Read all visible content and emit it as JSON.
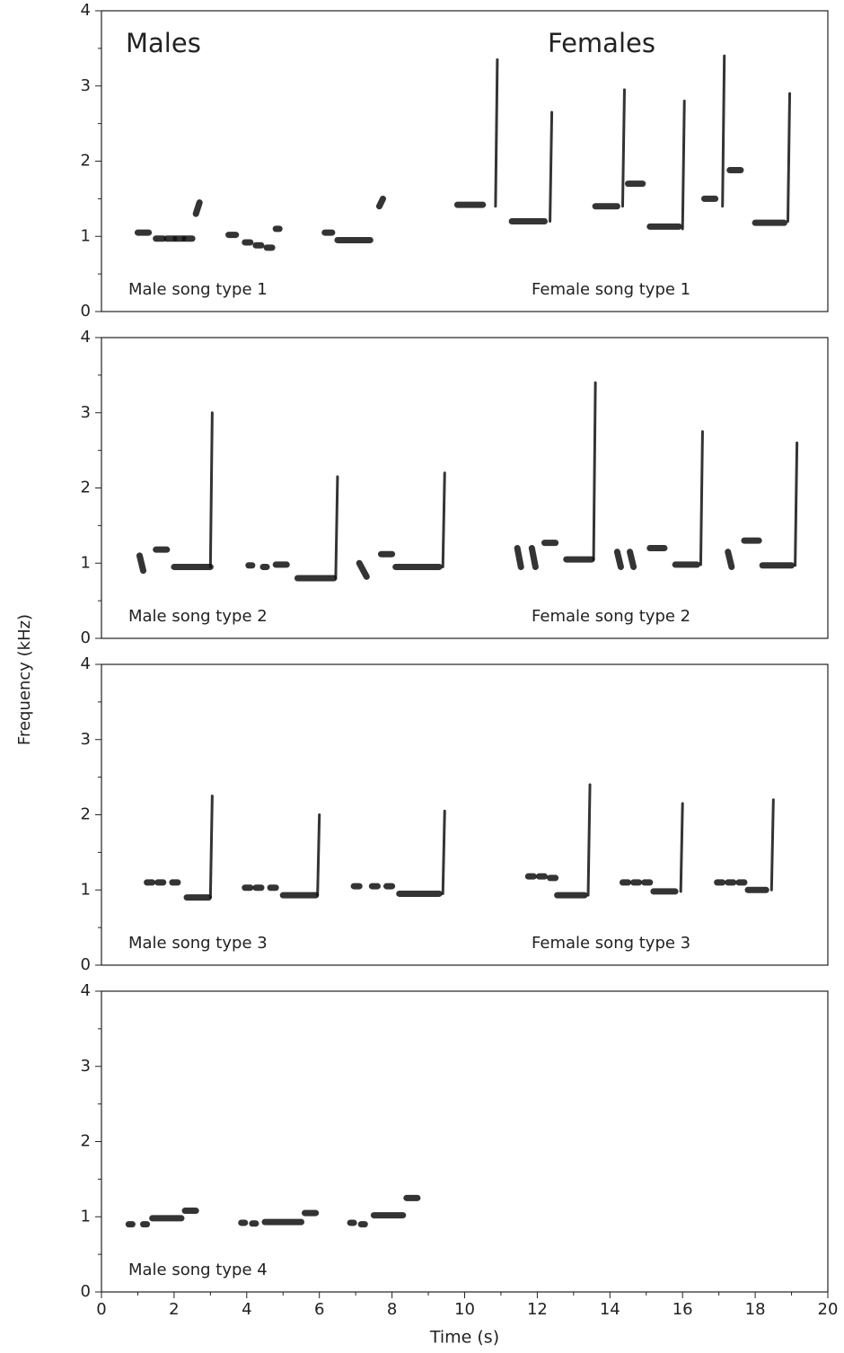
{
  "figure": {
    "ylabel": "Frequency (kHz)"
  },
  "chart_data": [
    {
      "type": "spectrogram",
      "group_labels": [
        "Males",
        "Females"
      ],
      "song_labels": [
        "Male song type 1",
        "Female song type 1"
      ],
      "xlim": [
        0,
        20
      ],
      "ylim": [
        0,
        4
      ],
      "yticks": [
        0,
        1,
        2,
        3,
        4
      ],
      "yminorticks": [
        0.5,
        1.5,
        2.5,
        3.5
      ],
      "notes": [
        {
          "t": [
            1.0,
            1.3
          ],
          "f": [
            1.05,
            1.05
          ]
        },
        {
          "t": [
            1.5,
            1.7
          ],
          "f": [
            0.97,
            0.97
          ]
        },
        {
          "t": [
            1.8,
            2.0
          ],
          "f": [
            0.97,
            0.97
          ]
        },
        {
          "t": [
            2.05,
            2.25
          ],
          "f": [
            0.97,
            0.97
          ]
        },
        {
          "t": [
            2.3,
            2.5
          ],
          "f": [
            0.97,
            0.97
          ]
        },
        {
          "t": [
            2.6,
            2.7
          ],
          "f": [
            1.3,
            1.45
          ]
        },
        {
          "t": [
            3.5,
            3.7
          ],
          "f": [
            1.02,
            1.02
          ]
        },
        {
          "t": [
            3.95,
            4.1
          ],
          "f": [
            0.92,
            0.92
          ]
        },
        {
          "t": [
            4.25,
            4.4
          ],
          "f": [
            0.88,
            0.88
          ]
        },
        {
          "t": [
            4.55,
            4.7
          ],
          "f": [
            0.85,
            0.85
          ]
        },
        {
          "t": [
            4.8,
            4.9
          ],
          "f": [
            1.1,
            1.1
          ]
        },
        {
          "t": [
            6.15,
            6.35
          ],
          "f": [
            1.05,
            1.05
          ]
        },
        {
          "t": [
            6.5,
            7.4
          ],
          "f": [
            0.95,
            0.95
          ]
        },
        {
          "t": [
            7.65,
            7.75
          ],
          "f": [
            1.4,
            1.5
          ]
        },
        {
          "t": [
            9.8,
            10.5
          ],
          "f": [
            1.42,
            1.42
          ]
        },
        {
          "t": [
            10.85,
            10.9
          ],
          "f": [
            1.4,
            3.35
          ]
        },
        {
          "t": [
            11.3,
            12.2
          ],
          "f": [
            1.2,
            1.2
          ]
        },
        {
          "t": [
            12.35,
            12.4
          ],
          "f": [
            1.2,
            2.65
          ]
        },
        {
          "t": [
            13.6,
            14.2
          ],
          "f": [
            1.4,
            1.4
          ]
        },
        {
          "t": [
            14.35,
            14.4
          ],
          "f": [
            1.4,
            2.95
          ]
        },
        {
          "t": [
            14.5,
            14.9
          ],
          "f": [
            1.7,
            1.7
          ]
        },
        {
          "t": [
            15.1,
            15.9
          ],
          "f": [
            1.13,
            1.13
          ]
        },
        {
          "t": [
            16.0,
            16.05
          ],
          "f": [
            1.1,
            2.8
          ]
        },
        {
          "t": [
            16.6,
            16.9
          ],
          "f": [
            1.5,
            1.5
          ]
        },
        {
          "t": [
            17.1,
            17.15
          ],
          "f": [
            1.4,
            3.4
          ]
        },
        {
          "t": [
            17.3,
            17.6
          ],
          "f": [
            1.88,
            1.88
          ]
        },
        {
          "t": [
            18.0,
            18.8
          ],
          "f": [
            1.18,
            1.18
          ]
        },
        {
          "t": [
            18.9,
            18.95
          ],
          "f": [
            1.2,
            2.9
          ]
        }
      ]
    },
    {
      "type": "spectrogram",
      "song_labels": [
        "Male song type 2",
        "Female song type 2"
      ],
      "xlim": [
        0,
        20
      ],
      "ylim": [
        0,
        4
      ],
      "yticks": [
        0,
        1,
        2,
        3,
        4
      ],
      "yminorticks": [
        0.5,
        1.5,
        2.5,
        3.5
      ],
      "notes": [
        {
          "t": [
            1.05,
            1.15
          ],
          "f": [
            1.1,
            0.9
          ]
        },
        {
          "t": [
            1.5,
            1.8
          ],
          "f": [
            1.18,
            1.18
          ]
        },
        {
          "t": [
            2.0,
            3.0
          ],
          "f": [
            0.95,
            0.95
          ]
        },
        {
          "t": [
            3.0,
            3.05
          ],
          "f": [
            0.95,
            3.0
          ]
        },
        {
          "t": [
            4.05,
            4.15
          ],
          "f": [
            0.97,
            0.97
          ]
        },
        {
          "t": [
            4.45,
            4.55
          ],
          "f": [
            0.95,
            0.95
          ]
        },
        {
          "t": [
            4.8,
            5.1
          ],
          "f": [
            0.98,
            0.98
          ]
        },
        {
          "t": [
            5.4,
            6.4
          ],
          "f": [
            0.8,
            0.8
          ]
        },
        {
          "t": [
            6.45,
            6.5
          ],
          "f": [
            0.8,
            2.15
          ]
        },
        {
          "t": [
            7.1,
            7.3
          ],
          "f": [
            1.0,
            0.82
          ]
        },
        {
          "t": [
            7.7,
            8.0
          ],
          "f": [
            1.12,
            1.12
          ]
        },
        {
          "t": [
            8.1,
            9.3
          ],
          "f": [
            0.95,
            0.95
          ]
        },
        {
          "t": [
            9.4,
            9.45
          ],
          "f": [
            0.95,
            2.2
          ]
        },
        {
          "t": [
            11.45,
            11.55
          ],
          "f": [
            1.2,
            0.95
          ]
        },
        {
          "t": [
            11.85,
            11.95
          ],
          "f": [
            1.2,
            0.95
          ]
        },
        {
          "t": [
            12.2,
            12.5
          ],
          "f": [
            1.27,
            1.27
          ]
        },
        {
          "t": [
            12.8,
            13.5
          ],
          "f": [
            1.05,
            1.05
          ]
        },
        {
          "t": [
            13.55,
            13.6
          ],
          "f": [
            1.05,
            3.4
          ]
        },
        {
          "t": [
            14.2,
            14.3
          ],
          "f": [
            1.15,
            0.95
          ]
        },
        {
          "t": [
            14.55,
            14.65
          ],
          "f": [
            1.15,
            0.95
          ]
        },
        {
          "t": [
            15.1,
            15.5
          ],
          "f": [
            1.2,
            1.2
          ]
        },
        {
          "t": [
            15.8,
            16.4
          ],
          "f": [
            0.98,
            0.98
          ]
        },
        {
          "t": [
            16.5,
            16.55
          ],
          "f": [
            0.98,
            2.75
          ]
        },
        {
          "t": [
            17.25,
            17.35
          ],
          "f": [
            1.15,
            0.95
          ]
        },
        {
          "t": [
            17.7,
            18.1
          ],
          "f": [
            1.3,
            1.3
          ]
        },
        {
          "t": [
            18.2,
            19.0
          ],
          "f": [
            0.97,
            0.97
          ]
        },
        {
          "t": [
            19.1,
            19.15
          ],
          "f": [
            0.97,
            2.6
          ]
        }
      ]
    },
    {
      "type": "spectrogram",
      "song_labels": [
        "Male song type 3",
        "Female song type 3"
      ],
      "xlim": [
        0,
        20
      ],
      "ylim": [
        0,
        4
      ],
      "yticks": [
        0,
        1,
        2,
        3,
        4
      ],
      "yminorticks": [
        0.5,
        1.5,
        2.5,
        3.5
      ],
      "notes": [
        {
          "t": [
            1.25,
            1.4
          ],
          "f": [
            1.1,
            1.1
          ]
        },
        {
          "t": [
            1.55,
            1.7
          ],
          "f": [
            1.1,
            1.1
          ]
        },
        {
          "t": [
            1.95,
            2.1
          ],
          "f": [
            1.1,
            1.1
          ]
        },
        {
          "t": [
            2.35,
            2.95
          ],
          "f": [
            0.9,
            0.9
          ]
        },
        {
          "t": [
            3.0,
            3.05
          ],
          "f": [
            0.9,
            2.25
          ]
        },
        {
          "t": [
            3.95,
            4.1
          ],
          "f": [
            1.03,
            1.03
          ]
        },
        {
          "t": [
            4.25,
            4.4
          ],
          "f": [
            1.03,
            1.03
          ]
        },
        {
          "t": [
            4.65,
            4.8
          ],
          "f": [
            1.03,
            1.03
          ]
        },
        {
          "t": [
            5.0,
            5.9
          ],
          "f": [
            0.93,
            0.93
          ]
        },
        {
          "t": [
            5.95,
            6.0
          ],
          "f": [
            0.93,
            2.0
          ]
        },
        {
          "t": [
            6.95,
            7.1
          ],
          "f": [
            1.05,
            1.05
          ]
        },
        {
          "t": [
            7.45,
            7.6
          ],
          "f": [
            1.05,
            1.05
          ]
        },
        {
          "t": [
            7.85,
            8.0
          ],
          "f": [
            1.05,
            1.05
          ]
        },
        {
          "t": [
            8.2,
            9.3
          ],
          "f": [
            0.95,
            0.95
          ]
        },
        {
          "t": [
            9.4,
            9.45
          ],
          "f": [
            0.95,
            2.05
          ]
        },
        {
          "t": [
            11.75,
            11.9
          ],
          "f": [
            1.18,
            1.18
          ]
        },
        {
          "t": [
            12.05,
            12.2
          ],
          "f": [
            1.18,
            1.18
          ]
        },
        {
          "t": [
            12.35,
            12.5
          ],
          "f": [
            1.16,
            1.16
          ]
        },
        {
          "t": [
            12.55,
            13.3
          ],
          "f": [
            0.93,
            0.93
          ]
        },
        {
          "t": [
            13.4,
            13.45
          ],
          "f": [
            0.93,
            2.4
          ]
        },
        {
          "t": [
            14.35,
            14.5
          ],
          "f": [
            1.1,
            1.1
          ]
        },
        {
          "t": [
            14.65,
            14.8
          ],
          "f": [
            1.1,
            1.1
          ]
        },
        {
          "t": [
            14.95,
            15.1
          ],
          "f": [
            1.1,
            1.1
          ]
        },
        {
          "t": [
            15.2,
            15.8
          ],
          "f": [
            0.98,
            0.98
          ]
        },
        {
          "t": [
            15.95,
            16.0
          ],
          "f": [
            0.98,
            2.15
          ]
        },
        {
          "t": [
            16.95,
            17.1
          ],
          "f": [
            1.1,
            1.1
          ]
        },
        {
          "t": [
            17.25,
            17.4
          ],
          "f": [
            1.1,
            1.1
          ]
        },
        {
          "t": [
            17.55,
            17.7
          ],
          "f": [
            1.1,
            1.1
          ]
        },
        {
          "t": [
            17.8,
            18.3
          ],
          "f": [
            1.0,
            1.0
          ]
        },
        {
          "t": [
            18.45,
            18.5
          ],
          "f": [
            1.0,
            2.2
          ]
        }
      ]
    },
    {
      "type": "spectrogram",
      "song_labels": [
        "Male song type 4"
      ],
      "xlabel": "Time (s)",
      "xlim": [
        0,
        20
      ],
      "ylim": [
        0,
        4
      ],
      "yticks": [
        0,
        1,
        2,
        3,
        4
      ],
      "yminorticks": [
        0.5,
        1.5,
        2.5,
        3.5
      ],
      "xticks": [
        0,
        2,
        4,
        6,
        8,
        10,
        12,
        14,
        16,
        18,
        20
      ],
      "xminorticks": [
        1,
        3,
        5,
        7,
        9,
        11,
        13,
        15,
        17,
        19
      ],
      "notes": [
        {
          "t": [
            0.75,
            0.85
          ],
          "f": [
            0.9,
            0.9
          ]
        },
        {
          "t": [
            1.15,
            1.25
          ],
          "f": [
            0.9,
            0.9
          ]
        },
        {
          "t": [
            1.4,
            2.2
          ],
          "f": [
            0.98,
            0.98
          ]
        },
        {
          "t": [
            2.3,
            2.6
          ],
          "f": [
            1.08,
            1.08
          ]
        },
        {
          "t": [
            3.85,
            3.95
          ],
          "f": [
            0.92,
            0.92
          ]
        },
        {
          "t": [
            4.15,
            4.25
          ],
          "f": [
            0.91,
            0.91
          ]
        },
        {
          "t": [
            4.5,
            5.5
          ],
          "f": [
            0.93,
            0.93
          ]
        },
        {
          "t": [
            5.6,
            5.9
          ],
          "f": [
            1.05,
            1.05
          ]
        },
        {
          "t": [
            6.85,
            6.95
          ],
          "f": [
            0.92,
            0.92
          ]
        },
        {
          "t": [
            7.15,
            7.25
          ],
          "f": [
            0.9,
            0.9
          ]
        },
        {
          "t": [
            7.5,
            8.3
          ],
          "f": [
            1.02,
            1.02
          ]
        },
        {
          "t": [
            8.4,
            8.7
          ],
          "f": [
            1.25,
            1.25
          ]
        }
      ]
    }
  ]
}
